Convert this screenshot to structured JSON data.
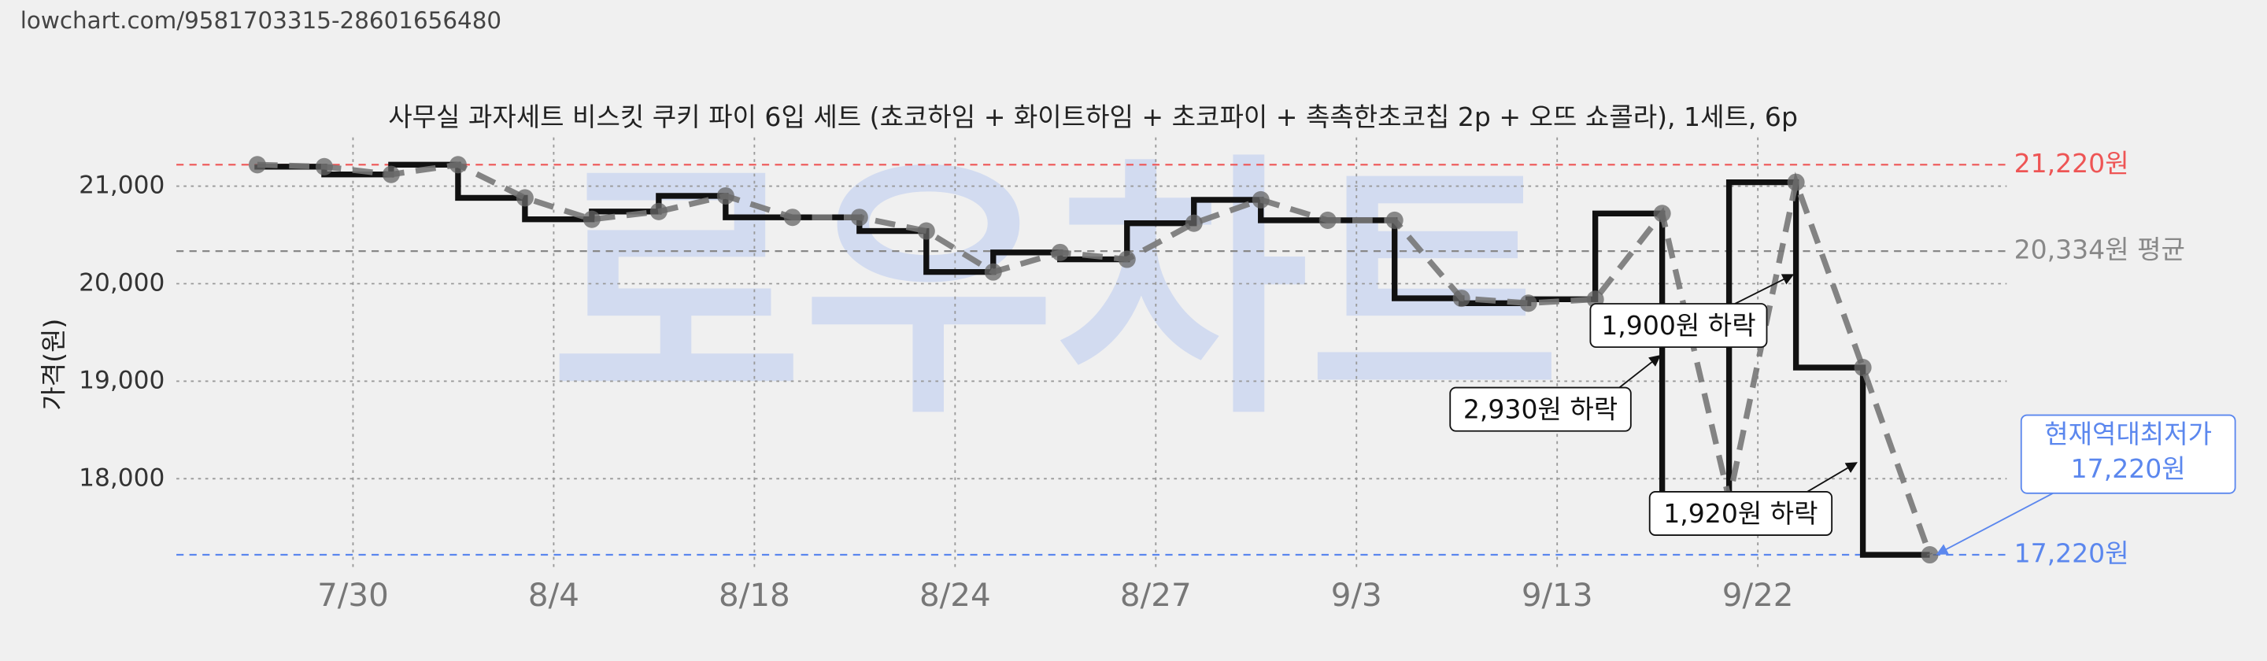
{
  "url": "lowchart.com/9581703315-28601656480",
  "chart_data": {
    "type": "line",
    "title": "사무실 과자세트 비스킷 쿠키 파이 6입 세트 (쵸코하임 + 화이트하임 + 초코파이 + 촉촉한초코칩 2p + 오뜨 쇼콜라), 1세트, 6p",
    "y_label": "가격(원)",
    "watermark": "로우차트",
    "x_labels": [
      "7/30",
      "8/4",
      "8/18",
      "8/24",
      "8/27",
      "9/3",
      "9/13",
      "9/22"
    ],
    "series": [
      {
        "color": "#111111",
        "dash_color": "#777777",
        "values": [
          21220,
          21200,
          21120,
          21220,
          20880,
          20660,
          20740,
          20900,
          20680,
          20680,
          20540,
          20120,
          20320,
          20250,
          20620,
          20860,
          20650,
          20650,
          19850,
          19800,
          19840,
          20720,
          17790,
          21040,
          19140,
          17220
        ]
      }
    ],
    "ylim": [
      17080,
      21500
    ],
    "yticks": [
      {
        "value": 18000,
        "label": "18,000"
      },
      {
        "value": 19000,
        "label": "19,000"
      },
      {
        "value": 20000,
        "label": "20,000"
      },
      {
        "value": 21000,
        "label": "21,000"
      }
    ],
    "grid": true,
    "reference_lines": [
      {
        "value": 21220,
        "label": "21,220원",
        "color": "#ee5555"
      },
      {
        "value": 20334,
        "label": "20,334원 평균",
        "color": "#888888"
      },
      {
        "value": 17220,
        "label": "17,220원",
        "color": "#5b87ee"
      }
    ],
    "annotations": [
      {
        "text": "1,900원 하락"
      },
      {
        "text": "2,930원 하락"
      },
      {
        "text": "1,920원 하락"
      },
      {
        "text": "현재역대최저가",
        "text2": "17,220원",
        "color": "#5b87ee"
      }
    ]
  }
}
